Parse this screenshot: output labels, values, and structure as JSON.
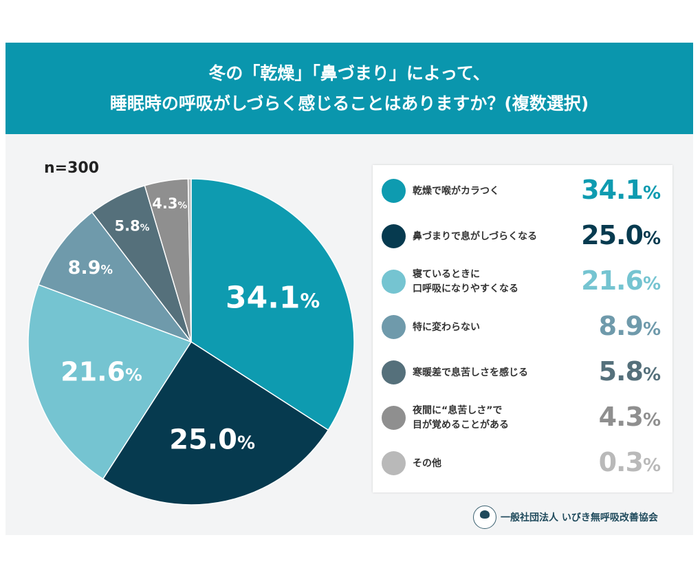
{
  "title": {
    "line1": "冬の「乾燥」「鼻づまり」によって、",
    "line2": "睡眠時の呼吸がしづらく感じることはありますか？(複数選択)"
  },
  "sample": "n=300",
  "organization": "一般社団法人 いびき無呼吸改善協会",
  "colors": {
    "header": "#0a96ad",
    "background": "#f3f4f5"
  },
  "chart_data": {
    "type": "pie",
    "title": "冬の「乾燥」「鼻づまり」によって、睡眠時の呼吸がしづらく感じることはありますか？(複数選択)",
    "unit": "%",
    "start": "top",
    "direction": "clockwise",
    "legend_placement": "right",
    "slices": [
      {
        "label": "乾燥で喉がカラつく",
        "lines": [
          "乾燥で喉がカラつく"
        ],
        "value": 34.1,
        "display": "34.1",
        "color": "#0e9bb0"
      },
      {
        "label": "鼻づまりで息がしづらくなる",
        "lines": [
          "鼻づまりで息がしづらくなる"
        ],
        "value": 25.0,
        "display": "25.0",
        "color": "#063a4f"
      },
      {
        "label": "寝ているときに口呼吸になりやすくなる",
        "lines": [
          "寝ているときに",
          "口呼吸になりやすくなる"
        ],
        "value": 21.6,
        "display": "21.6",
        "color": "#75c4d1"
      },
      {
        "label": "特に変わらない",
        "lines": [
          "特に変わらない"
        ],
        "value": 8.9,
        "display": "8.9",
        "color": "#6f9aab"
      },
      {
        "label": "寒暖差で息苦しさを感じる",
        "lines": [
          "寒暖差で息苦しさを感じる"
        ],
        "value": 5.8,
        "display": "5.8",
        "color": "#55707b"
      },
      {
        "label": "夜間に“息苦しさ”で目が覚めることがある",
        "lines": [
          "夜間に“息苦しさ”で",
          "目が覚めることがある"
        ],
        "value": 4.3,
        "display": "4.3",
        "color": "#8f8f8f"
      },
      {
        "label": "その他",
        "lines": [
          "その他"
        ],
        "value": 0.3,
        "display": "0.3",
        "color": "#b9b9b9"
      }
    ]
  }
}
